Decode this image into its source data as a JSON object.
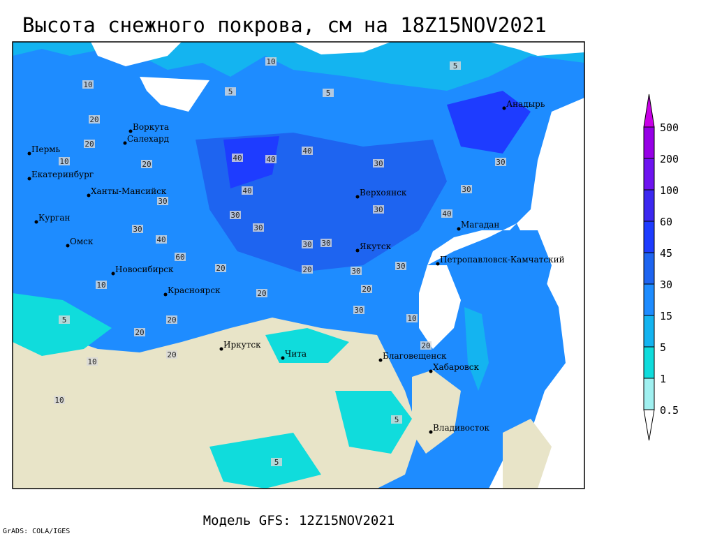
{
  "header": {
    "title": "Высота снежного покрова, см на 18Z15NOV2021"
  },
  "cities": [
    "Воркута",
    "Салехард",
    "Пермь",
    "Екатеринбург",
    "Ханты-Мансийск",
    "Курган",
    "Омск",
    "Новосибирск",
    "Красноярск",
    "Иркутск",
    "Чита",
    "Верхоянск",
    "Якутск",
    "Магадан",
    "Анадырь",
    "Петропавловск-Камчатский",
    "Благовещенск",
    "Хабаровск",
    "Владивосток"
  ],
  "contour_labels": [
    "10",
    "20",
    "5",
    "10",
    "5",
    "20",
    "20",
    "10",
    "40",
    "40",
    "40",
    "30",
    "30",
    "30",
    "40",
    "30",
    "30",
    "30",
    "40",
    "30",
    "30",
    "60",
    "20",
    "20",
    "20",
    "30",
    "30",
    "30",
    "20",
    "20",
    "10",
    "20",
    "10",
    "10",
    "5",
    "5",
    "5",
    "20",
    "40",
    "30",
    "20",
    "30",
    "5",
    "10"
  ],
  "legend": {
    "levels": [
      500,
      200,
      100,
      60,
      45,
      30,
      15,
      5,
      1,
      0.5
    ],
    "colors": [
      "#c800e6",
      "#9600e6",
      "#6e14f0",
      "#3c28f0",
      "#1e3cff",
      "#1e64f0",
      "#1e8cff",
      "#14b4f0",
      "#10dcdc",
      "#a0f0f0",
      "#ffffff"
    ]
  },
  "footer": {
    "model": "Модель GFS: 12Z15NOV2021",
    "credit": "GrADS: COLA/IGES"
  }
}
